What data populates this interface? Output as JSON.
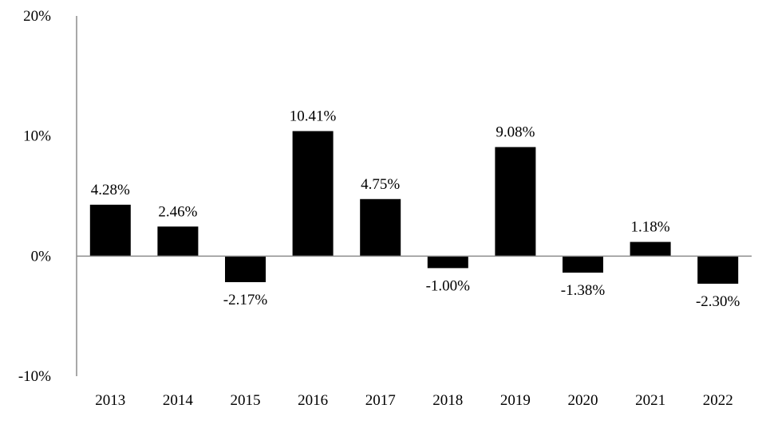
{
  "chart_data": {
    "type": "bar",
    "categories": [
      "2013",
      "2014",
      "2015",
      "2016",
      "2017",
      "2018",
      "2019",
      "2020",
      "2021",
      "2022"
    ],
    "values": [
      4.28,
      2.46,
      -2.17,
      10.41,
      4.75,
      -1.0,
      9.08,
      -1.38,
      1.18,
      -2.3
    ],
    "data_labels": [
      "4.28%",
      "2.46%",
      "-2.17%",
      "10.41%",
      "4.75%",
      "-1.00%",
      "9.08%",
      "-1.38%",
      "1.18%",
      "-2.30%"
    ],
    "y_ticks": [
      20,
      10,
      0,
      -10
    ],
    "y_tick_labels": [
      "20%",
      "10%",
      "0%",
      "-10%"
    ],
    "ylim": [
      -10,
      20
    ],
    "title": "",
    "xlabel": "",
    "ylabel": "",
    "grid": false,
    "legend": "none",
    "bar_color": "#000000",
    "axis_color": "#8c8c8c"
  }
}
